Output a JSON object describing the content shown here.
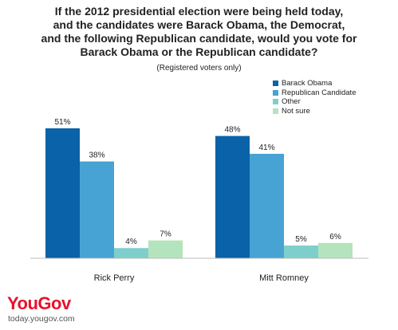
{
  "chart_data": {
    "type": "bar",
    "title_lines": [
      "If the 2012 presidential election were being held today,",
      "and the candidates were Barack Obama, the Democrat,",
      "and the following Republican candidate, would you vote for",
      "Barack Obama or the Republican candidate?"
    ],
    "subtitle": "(Registered voters only)",
    "categories": [
      "Rick Perry",
      "Mitt Romney"
    ],
    "series": [
      {
        "name": "Barack Obama",
        "values": [
          51,
          48
        ],
        "color": "#0a62a8"
      },
      {
        "name": "Republican Candidate",
        "values": [
          38,
          41
        ],
        "color": "#46a3d4"
      },
      {
        "name": "Other",
        "values": [
          4,
          5
        ],
        "color": "#7ecfcb"
      },
      {
        "name": "Not sure",
        "values": [
          7,
          6
        ],
        "color": "#b4e4bd"
      }
    ],
    "value_suffix": "%",
    "ylim": [
      0,
      51
    ],
    "grid": false,
    "legend_position": "top-right"
  },
  "branding": {
    "logo_you": "You",
    "logo_gov": "Gov",
    "site": "today.yougov.com"
  }
}
